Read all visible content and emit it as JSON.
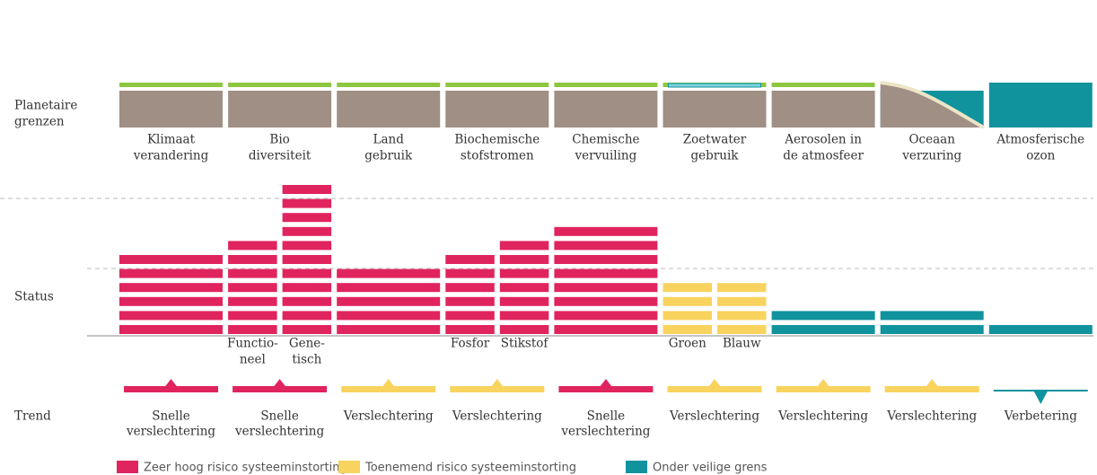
{
  "row_labels": {
    "planetary": [
      "Planetaire",
      "grenzen"
    ],
    "status": "Status",
    "trend": "Trend"
  },
  "columns": [
    {
      "label": [
        "Klimaat",
        "verandering"
      ],
      "bars": [
        {
          "stripes": 6,
          "color": "#e0245e"
        }
      ],
      "trend": {
        "direction": "up",
        "color": "#e0245e",
        "label": [
          "Snelle",
          "verslechtering"
        ]
      }
    },
    {
      "label": [
        "Bio",
        "diversiteit"
      ],
      "bars": [
        {
          "stripes": 7,
          "color": "#e0245e",
          "label": [
            "Functio-",
            "neel"
          ]
        },
        {
          "stripes": 11,
          "color": "#e0245e",
          "label": [
            "Gene-",
            "tisch"
          ]
        }
      ],
      "trend": {
        "direction": "up",
        "color": "#e0245e",
        "label": [
          "Snelle",
          "verslechtering"
        ]
      }
    },
    {
      "label": [
        "Land",
        "gebruik"
      ],
      "bars": [
        {
          "stripes": 5,
          "color": "#e0245e"
        }
      ],
      "trend": {
        "direction": "up",
        "color": "#f8d35e",
        "label": [
          "Verslechtering"
        ]
      }
    },
    {
      "label": [
        "Biochemische",
        "stofstromen"
      ],
      "bars": [
        {
          "stripes": 6,
          "color": "#e0245e",
          "label": [
            "Fosfor"
          ]
        },
        {
          "stripes": 7,
          "color": "#e0245e",
          "label": [
            "Stikstof"
          ]
        }
      ],
      "trend": {
        "direction": "up",
        "color": "#f8d35e",
        "label": [
          "Verslechtering"
        ]
      }
    },
    {
      "label": [
        "Chemische",
        "vervuiling"
      ],
      "bars": [
        {
          "stripes": 8,
          "color": "#e0245e"
        }
      ],
      "trend": {
        "direction": "up",
        "color": "#e0245e",
        "label": [
          "Snelle",
          "verslechtering"
        ]
      }
    },
    {
      "label": [
        "Zoetwater",
        "gebruik"
      ],
      "bars": [
        {
          "stripes": 4,
          "color": "#f8d35e",
          "label": [
            "Groen"
          ]
        },
        {
          "stripes": 4,
          "color": "#f8d35e",
          "label": [
            "Blauw"
          ]
        }
      ],
      "trend": {
        "direction": "up",
        "color": "#f8d35e",
        "label": [
          "Verslechtering"
        ]
      }
    },
    {
      "label": [
        "Aerosolen in",
        "de atmosfeer"
      ],
      "bars": [
        {
          "stripes": 2,
          "color": "#11939e"
        }
      ],
      "trend": {
        "direction": "up",
        "color": "#f8d35e",
        "label": [
          "Verslechtering"
        ]
      }
    },
    {
      "label": [
        "Oceaan",
        "verzuring"
      ],
      "bars": [
        {
          "stripes": 2,
          "color": "#11939e"
        }
      ],
      "trend": {
        "direction": "up",
        "color": "#f8d35e",
        "label": [
          "Verslechtering"
        ]
      }
    },
    {
      "label": [
        "Atmosferische",
        "ozon"
      ],
      "bars": [
        {
          "stripes": 1,
          "color": "#11939e"
        }
      ],
      "trend": {
        "direction": "down",
        "color": "#11939e",
        "label": [
          "Verbetering"
        ]
      }
    }
  ],
  "legend": [
    {
      "label": "Zeer hoog risico systeeminstorting",
      "color": "#e0245e"
    },
    {
      "label": "Toenemend risico systeeminstorting",
      "color": "#f8d35e"
    },
    {
      "label": "Onder veilige grens",
      "color": "#11939e"
    }
  ]
}
